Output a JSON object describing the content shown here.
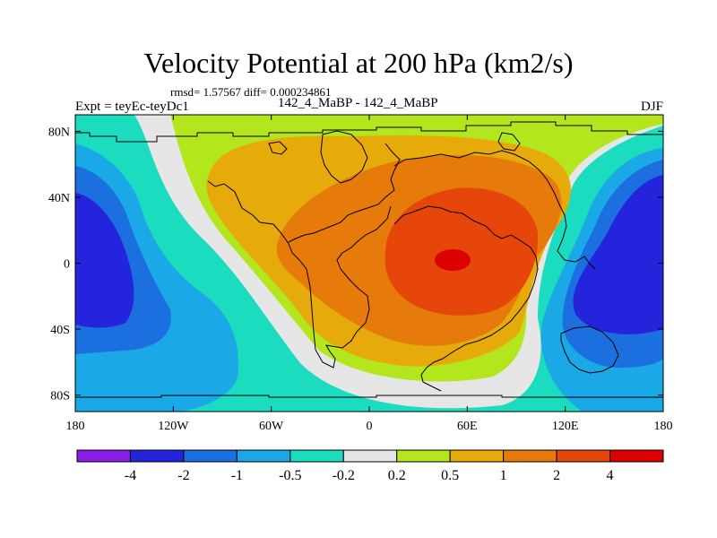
{
  "title": "Velocity Potential at 200 hPa (km2/s)",
  "stats_text": "rmsd= 1.57567 diff= 0.000234861",
  "left_label": "Expt = teyEc-teyDc1",
  "center_label": "142_4_MaBP - 142_4_MaBP",
  "right_label": "DJF",
  "chart_data": {
    "type": "heatmap",
    "title": "Velocity Potential at 200 hPa (km2/s)",
    "variable": "velocity potential difference",
    "units": "km2/s",
    "x_range": [
      -180,
      180
    ],
    "y_range": [
      -90,
      90
    ],
    "x_ticks": [
      {
        "value": -180,
        "label": "180"
      },
      {
        "value": -120,
        "label": "120W"
      },
      {
        "value": -60,
        "label": "60W"
      },
      {
        "value": 0,
        "label": "0"
      },
      {
        "value": 60,
        "label": "60E"
      },
      {
        "value": 120,
        "label": "120E"
      },
      {
        "value": 180,
        "label": "180"
      }
    ],
    "y_ticks": [
      {
        "value": 80,
        "label": "80N"
      },
      {
        "value": 40,
        "label": "40N"
      },
      {
        "value": 0,
        "label": "0"
      },
      {
        "value": -40,
        "label": "40S"
      },
      {
        "value": -80,
        "label": "80S"
      }
    ],
    "contour_levels": [
      -4,
      -2,
      -1,
      -0.5,
      -0.2,
      0.2,
      0.5,
      1,
      2,
      4
    ],
    "colorbar_labels": [
      "-4",
      "-2",
      "-1",
      "-0.5",
      "-0.2",
      "0.2",
      "0.5",
      "1",
      "2",
      "4"
    ],
    "colors": [
      "#8a1ee6",
      "#2424dc",
      "#1b6fdf",
      "#1aa8e6",
      "#1cdcc0",
      "#e6e6e6",
      "#b4e61e",
      "#e6aa0a",
      "#e67a0a",
      "#e6460a",
      "#dc0000"
    ],
    "anomaly_centers": [
      {
        "lon": 55,
        "lat": 0,
        "value": 4.5
      },
      {
        "lon": -165,
        "lat": 5,
        "value": -2.5
      },
      {
        "lon": 165,
        "lat": 5,
        "value": -2.5
      }
    ]
  }
}
